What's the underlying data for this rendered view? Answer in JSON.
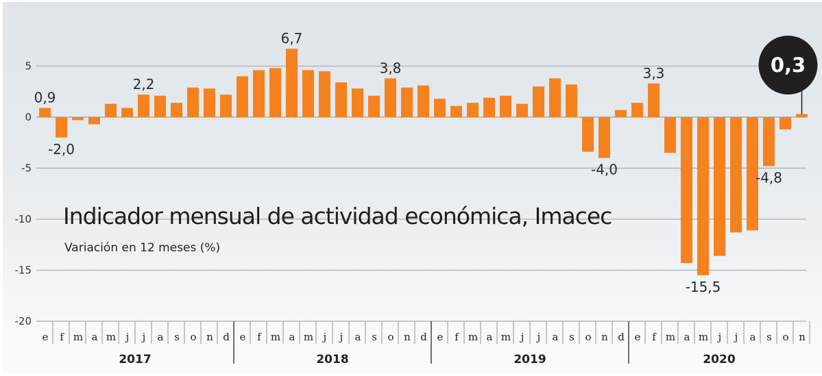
{
  "chart_data": {
    "type": "bar",
    "title": "Indicador mensual de actividad económica, Imacec",
    "subtitle": "Variación en 12 meses (%)",
    "xlabel": "",
    "ylabel": "",
    "ylim": [
      -20,
      5
    ],
    "yticks": [
      5,
      0,
      -5,
      -10,
      -15,
      -20
    ],
    "ytick_labels": [
      "5",
      "0",
      "-5",
      "-10",
      "-15",
      "-20"
    ],
    "grid": true,
    "years": [
      "2017",
      "2018",
      "2019",
      "2020"
    ],
    "month_labels": [
      "e",
      "f",
      "m",
      "a",
      "m",
      "j",
      "j",
      "a",
      "s",
      "o",
      "n",
      "d"
    ],
    "categories": [
      "ene 2017",
      "feb 2017",
      "mar 2017",
      "abr 2017",
      "may 2017",
      "jun 2017",
      "jul 2017",
      "ago 2017",
      "sep 2017",
      "oct 2017",
      "nov 2017",
      "dic 2017",
      "ene 2018",
      "feb 2018",
      "mar 2018",
      "abr 2018",
      "may 2018",
      "jun 2018",
      "jul 2018",
      "ago 2018",
      "sep 2018",
      "oct 2018",
      "nov 2018",
      "dic 2018",
      "ene 2019",
      "feb 2019",
      "mar 2019",
      "abr 2019",
      "may 2019",
      "jun 2019",
      "jul 2019",
      "ago 2019",
      "sep 2019",
      "oct 2019",
      "nov 2019",
      "dic 2019",
      "ene 2020",
      "feb 2020",
      "mar 2020",
      "abr 2020",
      "may 2020",
      "jun 2020",
      "jul 2020",
      "ago 2020",
      "sep 2020",
      "oct 2020",
      "nov 2020"
    ],
    "values": [
      0.9,
      -2.0,
      -0.3,
      -0.7,
      1.3,
      0.9,
      2.2,
      2.1,
      1.4,
      2.9,
      2.8,
      2.2,
      4.0,
      4.6,
      4.8,
      6.7,
      4.6,
      4.5,
      3.4,
      2.8,
      2.1,
      3.8,
      2.9,
      3.1,
      1.8,
      1.1,
      1.4,
      1.9,
      2.1,
      1.3,
      3.0,
      3.8,
      3.2,
      -3.4,
      -4.0,
      0.7,
      1.4,
      3.3,
      -3.5,
      -14.3,
      -15.5,
      -13.6,
      -11.3,
      -11.1,
      -4.8,
      -1.2,
      0.3
    ],
    "data_labels": [
      {
        "index": 0,
        "text": "0,9",
        "position": "above"
      },
      {
        "index": 1,
        "text": "-2,0",
        "position": "below"
      },
      {
        "index": 6,
        "text": "2,2",
        "position": "above"
      },
      {
        "index": 15,
        "text": "6,7",
        "position": "above"
      },
      {
        "index": 21,
        "text": "3,8",
        "position": "above"
      },
      {
        "index": 34,
        "text": "-4,0",
        "position": "below"
      },
      {
        "index": 37,
        "text": "3,3",
        "position": "above"
      },
      {
        "index": 40,
        "text": "-15,5",
        "position": "below"
      },
      {
        "index": 44,
        "text": "-4,8",
        "position": "below"
      }
    ],
    "highlight": {
      "index": 46,
      "text": "0,3"
    },
    "colors": {
      "bar": "#f5821f",
      "badge": "#231f20"
    }
  }
}
